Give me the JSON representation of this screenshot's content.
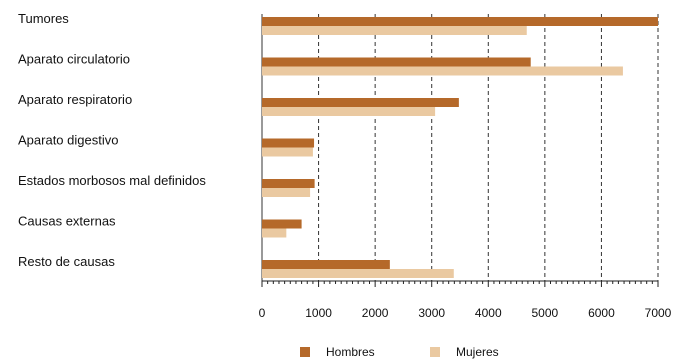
{
  "chart_data": {
    "type": "bar",
    "orientation": "horizontal",
    "categories": [
      "Tumores",
      "Aparato circulatorio",
      "Aparato respiratorio",
      "Aparato digestivo",
      "Estados morbosos mal definidos",
      "Causas externas",
      "Resto de causas"
    ],
    "series": [
      {
        "name": "Hombres",
        "color": "#b5692a",
        "values": [
          7000,
          4750,
          3480,
          920,
          930,
          700,
          2260
        ]
      },
      {
        "name": "Mujeres",
        "color": "#eac9a1",
        "values": [
          4680,
          6380,
          3060,
          900,
          850,
          430,
          3390
        ]
      }
    ],
    "xlim": [
      0,
      7000
    ],
    "xticks": [
      "0",
      "1000",
      "2000",
      "3000",
      "4000",
      "5000",
      "6000",
      "7000"
    ],
    "grid": "vertical dashed",
    "legend_position": "bottom"
  }
}
